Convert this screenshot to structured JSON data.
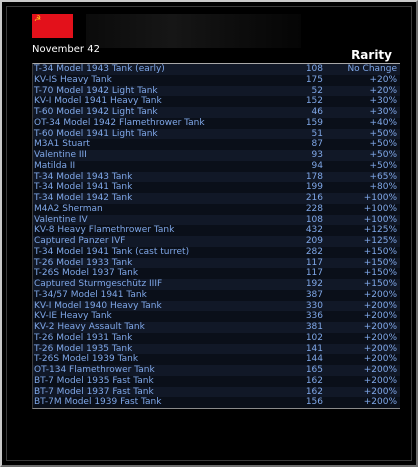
{
  "header": {
    "date": "November 42",
    "column_title": "Rarity",
    "flag_emblem": "☭"
  },
  "colors": {
    "flag_red": "#e3111b",
    "row_text": "#7fa7e8",
    "background": "#000000"
  },
  "rows": [
    {
      "name": "T-34 Model 1943 Tank (early)",
      "count": "108",
      "change": "No Change"
    },
    {
      "name": "KV-IS Heavy Tank",
      "count": "175",
      "change": "+20%"
    },
    {
      "name": "T-70 Model 1942 Light Tank",
      "count": "52",
      "change": "+20%"
    },
    {
      "name": "KV-I Model 1941 Heavy Tank",
      "count": "152",
      "change": "+30%"
    },
    {
      "name": "T-60 Model 1942 Light Tank",
      "count": "46",
      "change": "+30%"
    },
    {
      "name": "OT-34 Model 1942 Flamethrower Tank",
      "count": "159",
      "change": "+40%"
    },
    {
      "name": "T-60 Model 1941 Light Tank",
      "count": "51",
      "change": "+50%"
    },
    {
      "name": "M3A1 Stuart",
      "count": "87",
      "change": "+50%"
    },
    {
      "name": "Valentine III",
      "count": "93",
      "change": "+50%"
    },
    {
      "name": "Matilda II",
      "count": "94",
      "change": "+50%"
    },
    {
      "name": "T-34 Model 1943 Tank",
      "count": "178",
      "change": "+65%"
    },
    {
      "name": "T-34 Model 1941 Tank",
      "count": "199",
      "change": "+80%"
    },
    {
      "name": "T-34 Model 1942 Tank",
      "count": "216",
      "change": "+100%"
    },
    {
      "name": "M4A2 Sherman",
      "count": "228",
      "change": "+100%"
    },
    {
      "name": "Valentine IV",
      "count": "108",
      "change": "+100%"
    },
    {
      "name": "KV-8 Heavy Flamethrower Tank",
      "count": "432",
      "change": "+125%"
    },
    {
      "name": "Captured Panzer IVF",
      "count": "209",
      "change": "+125%"
    },
    {
      "name": "T-34 Model 1941 Tank (cast turret)",
      "count": "282",
      "change": "+150%"
    },
    {
      "name": "T-26 Model 1933 Tank",
      "count": "117",
      "change": "+150%"
    },
    {
      "name": "T-26S Model 1937 Tank",
      "count": "117",
      "change": "+150%"
    },
    {
      "name": "Captured Sturmgeschütz IIIF",
      "count": "192",
      "change": "+150%"
    },
    {
      "name": "T-34/57 Model 1941 Tank",
      "count": "387",
      "change": "+200%"
    },
    {
      "name": "KV-I Model 1940 Heavy Tank",
      "count": "330",
      "change": "+200%"
    },
    {
      "name": "KV-IE Heavy Tank",
      "count": "336",
      "change": "+200%"
    },
    {
      "name": "KV-2 Heavy Assault Tank",
      "count": "381",
      "change": "+200%"
    },
    {
      "name": "T-26 Model 1931 Tank",
      "count": "102",
      "change": "+200%"
    },
    {
      "name": "T-26 Model 1935 Tank",
      "count": "141",
      "change": "+200%"
    },
    {
      "name": "T-26S Model 1939 Tank",
      "count": "144",
      "change": "+200%"
    },
    {
      "name": "OT-134 Flamethrower Tank",
      "count": "165",
      "change": "+200%"
    },
    {
      "name": "BT-7 Model 1935 Fast Tank",
      "count": "162",
      "change": "+200%"
    },
    {
      "name": "BT-7 Model 1937 Fast Tank",
      "count": "162",
      "change": "+200%"
    },
    {
      "name": "BT-7M Model 1939 Fast Tank",
      "count": "156",
      "change": "+200%"
    }
  ]
}
